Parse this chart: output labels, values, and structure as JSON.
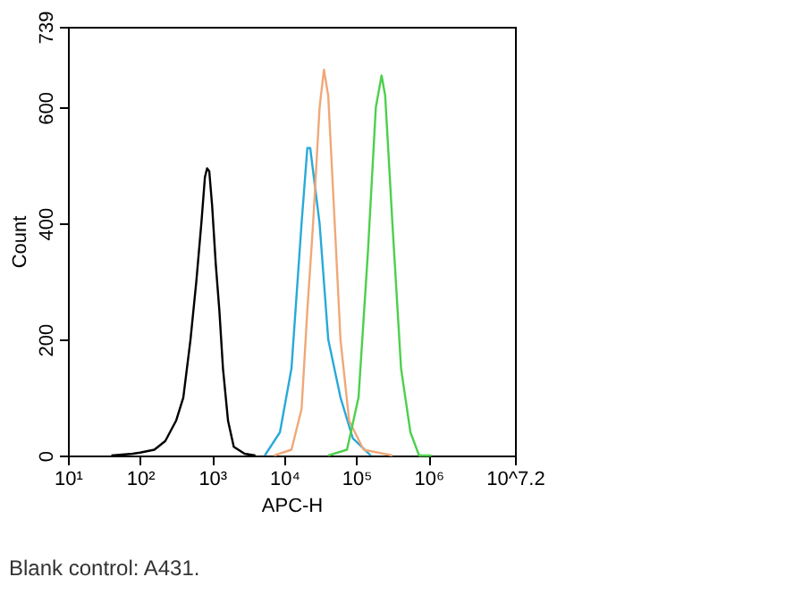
{
  "chart_data": {
    "type": "line",
    "xlabel": "APC-H",
    "ylabel": "Count",
    "log": "x",
    "xlim": [
      10,
      15848932
    ],
    "xticks": [
      {
        "value": 10,
        "label": "10¹"
      },
      {
        "value": 100,
        "label": "10²"
      },
      {
        "value": 1000,
        "label": "10³"
      },
      {
        "value": 10000,
        "label": "10⁴"
      },
      {
        "value": 100000,
        "label": "10⁵"
      },
      {
        "value": 1000000,
        "label": "10⁶"
      },
      {
        "value": 15848932,
        "label": "10^7.2"
      }
    ],
    "ylim": [
      0,
      739
    ],
    "yticks": [
      0,
      200,
      400,
      600,
      739
    ],
    "grid": false,
    "legend": false,
    "marker": "none",
    "line_style": "solid",
    "annotations": [
      "Blank control: A431."
    ],
    "series": [
      {
        "color": "#000000",
        "x": [
          40,
          79,
          100,
          158,
          224,
          316,
          398,
          501,
          603,
          708,
          794,
          851,
          912,
          1000,
          1122,
          1259,
          1413,
          1660,
          1995,
          2818,
          3981
        ],
        "values": [
          0,
          3,
          5,
          10,
          25,
          60,
          100,
          200,
          300,
          400,
          480,
          495,
          490,
          430,
          330,
          250,
          150,
          60,
          15,
          3,
          0
        ]
      },
      {
        "color": "#29a9d8",
        "x": [
          5370,
          8710,
          12589,
          17378,
          20893,
          22909,
          30903,
          40738,
          60256,
          89125,
          158489
        ],
        "values": [
          0,
          40,
          150,
          400,
          530,
          530,
          400,
          200,
          100,
          30,
          0
        ]
      },
      {
        "color": "#f0a878",
        "x": [
          7244,
          12589,
          17378,
          20893,
          25119,
          30903,
          35481,
          40738,
          50119,
          60256,
          79433,
          125893,
          316228
        ],
        "values": [
          0,
          10,
          80,
          250,
          400,
          600,
          665,
          620,
          400,
          200,
          60,
          10,
          0
        ]
      },
      {
        "color": "#4cd04c",
        "x": [
          40738,
          74131,
          107152,
          144544,
          186209,
          223872,
          251189,
          316228,
          416869,
          562341,
          741310,
          1096478
        ],
        "values": [
          0,
          10,
          100,
          350,
          600,
          655,
          620,
          400,
          150,
          40,
          0,
          0
        ]
      }
    ]
  }
}
